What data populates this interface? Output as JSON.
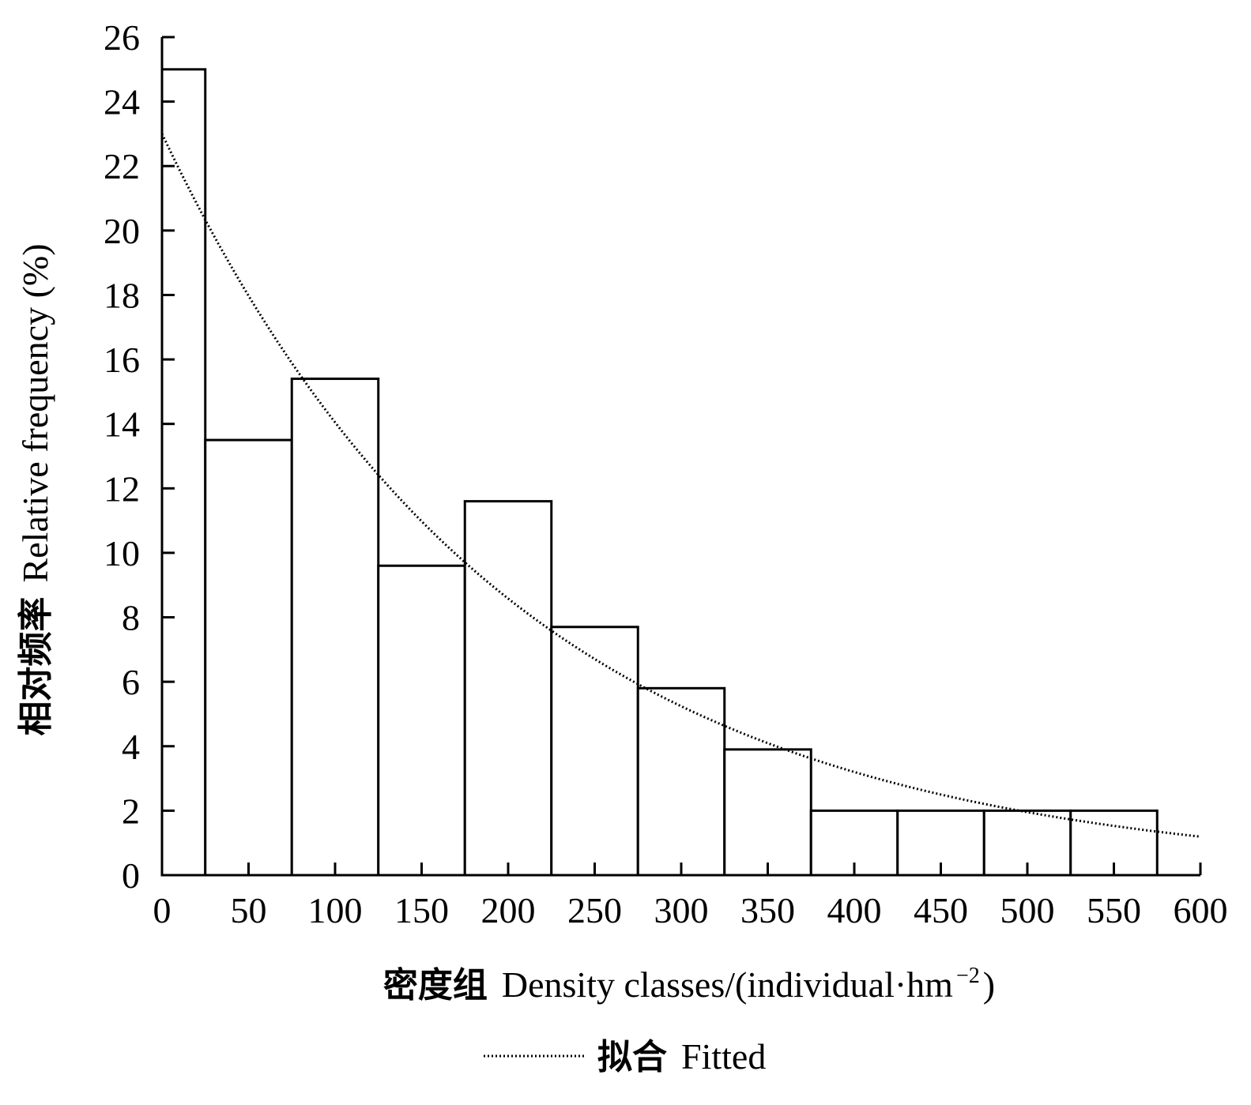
{
  "chart_data": {
    "type": "bar",
    "histogram": true,
    "categories": [
      "0-25",
      "25-75",
      "75-125",
      "125-175",
      "175-225",
      "225-275",
      "275-325",
      "325-375",
      "375-425",
      "425-475",
      "475-525",
      "525-575"
    ],
    "bins": [
      [
        0,
        25
      ],
      [
        25,
        75
      ],
      [
        75,
        125
      ],
      [
        125,
        175
      ],
      [
        175,
        225
      ],
      [
        225,
        275
      ],
      [
        275,
        325
      ],
      [
        325,
        375
      ],
      [
        375,
        425
      ],
      [
        425,
        475
      ],
      [
        475,
        525
      ],
      [
        525,
        575
      ]
    ],
    "values": [
      25,
      13.5,
      15.4,
      9.6,
      11.6,
      7.7,
      5.8,
      3.9,
      2.0,
      2.0,
      2.0,
      2.0
    ],
    "fitted": {
      "name_zh": "拟合",
      "name_en": "Fitted",
      "model": "exponential",
      "a": 23.0,
      "b": 0.00493,
      "x_range": [
        0,
        600
      ]
    },
    "xlabel_zh": "密度组",
    "xlabel_en": "Density classes/(individual·hm",
    "xlabel_sup": "−2",
    "xlabel_close": ")",
    "ylabel_zh": "相对频率",
    "ylabel_en": "Relative frequency (%)",
    "xlim": [
      0,
      600
    ],
    "ylim": [
      0,
      26
    ],
    "x_ticks": [
      "0",
      "50",
      "100",
      "150",
      "200",
      "250",
      "300",
      "350",
      "400",
      "450",
      "500",
      "550",
      "600"
    ],
    "y_ticks": [
      "0",
      "2",
      "4",
      "6",
      "8",
      "10",
      "12",
      "14",
      "16",
      "18",
      "20",
      "22",
      "24",
      "26"
    ],
    "legend_position": "bottom-center",
    "grid": false,
    "bar_fill": "#ffffff",
    "bar_stroke": "#000000",
    "line_color": "#000000"
  }
}
